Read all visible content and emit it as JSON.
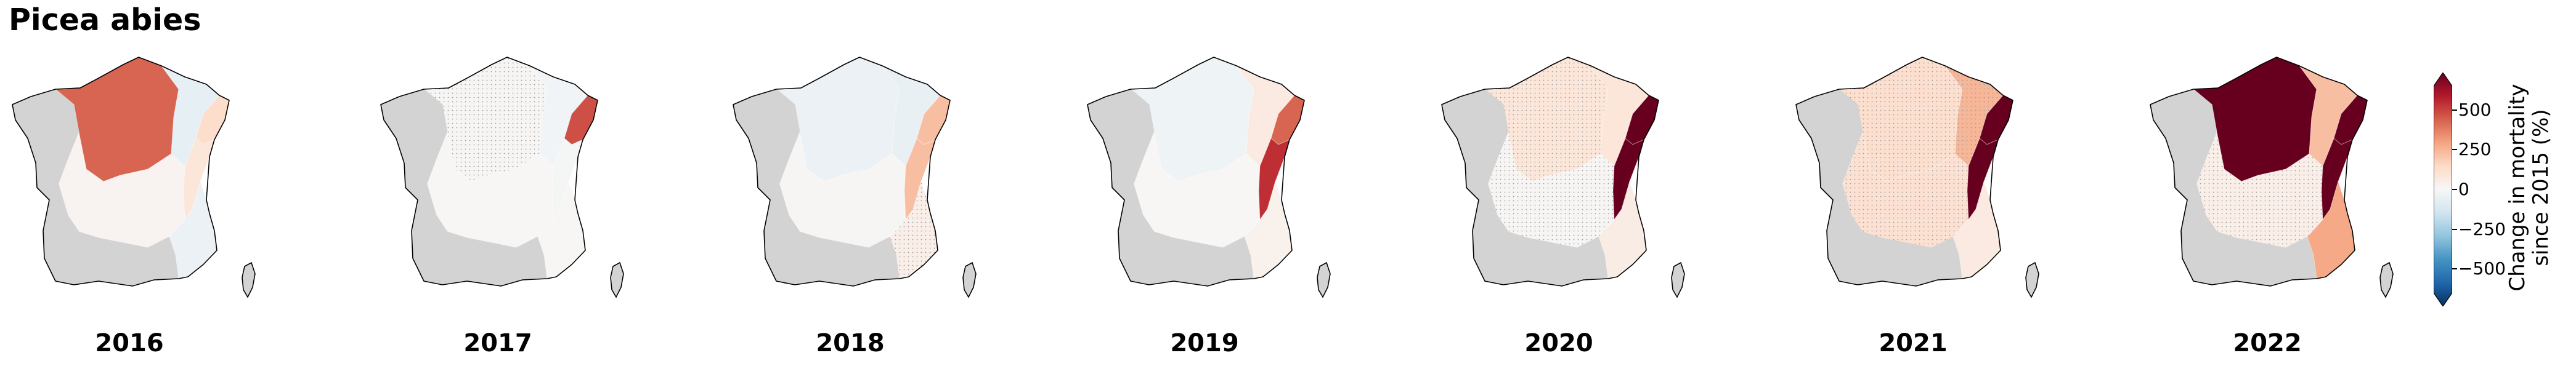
{
  "figure": {
    "title": "Picea abies"
  },
  "colorbar": {
    "label_line1": "Change in mortality",
    "label_line2": "since 2015 (%)",
    "ticks": [
      "500",
      "250",
      "0",
      "−250",
      "−500"
    ],
    "tick_values": [
      500,
      250,
      0,
      -250,
      -500
    ],
    "range": [
      -650,
      650
    ],
    "colormap": "RdBu_r",
    "extend": "both"
  },
  "regions": [
    "north",
    "west",
    "centre",
    "north-east",
    "alsace-vosges",
    "jura-alps",
    "south-west",
    "south-east",
    "corsica"
  ],
  "maps": [
    {
      "year": "2016",
      "values": {
        "north": 380,
        "centre": 20,
        "north-east": -60,
        "alsace-vosges": 120,
        "jura-alps": 80,
        "south-east": -40
      },
      "stippled": []
    },
    {
      "year": "2017",
      "values": {
        "north": 10,
        "centre": 5,
        "north-east": -20,
        "alsace-vosges": 420,
        "jura-alps": -10,
        "south-east": 5
      },
      "stippled": [
        "north"
      ]
    },
    {
      "year": "2018",
      "values": {
        "north": -40,
        "centre": 10,
        "north-east": -50,
        "alsace-vosges": 200,
        "jura-alps": 200,
        "south-east": 40
      },
      "stippled": [
        "south-east"
      ]
    },
    {
      "year": "2019",
      "values": {
        "north": -30,
        "centre": 5,
        "north-east": 60,
        "alsace-vosges": 380,
        "jura-alps": 480,
        "south-east": 30
      },
      "stippled": []
    },
    {
      "year": "2020",
      "values": {
        "north": 80,
        "centre": 10,
        "north-east": 80,
        "alsace-vosges": 650,
        "jura-alps": 650,
        "south-east": 50
      },
      "stippled": [
        "north",
        "centre"
      ]
    },
    {
      "year": "2021",
      "values": {
        "north": 110,
        "centre": 100,
        "north-east": 220,
        "alsace-vosges": 650,
        "jura-alps": 650,
        "south-east": 60
      },
      "stippled": [
        "north",
        "centre",
        "north-east"
      ]
    },
    {
      "year": "2022",
      "values": {
        "north": 650,
        "centre": 40,
        "north-east": 200,
        "alsace-vosges": 650,
        "jura-alps": 650,
        "south-east": 250
      },
      "stippled": [
        "centre"
      ]
    }
  ],
  "colors": {
    "no_data": "#d3d3d3",
    "outline": "#000000"
  }
}
